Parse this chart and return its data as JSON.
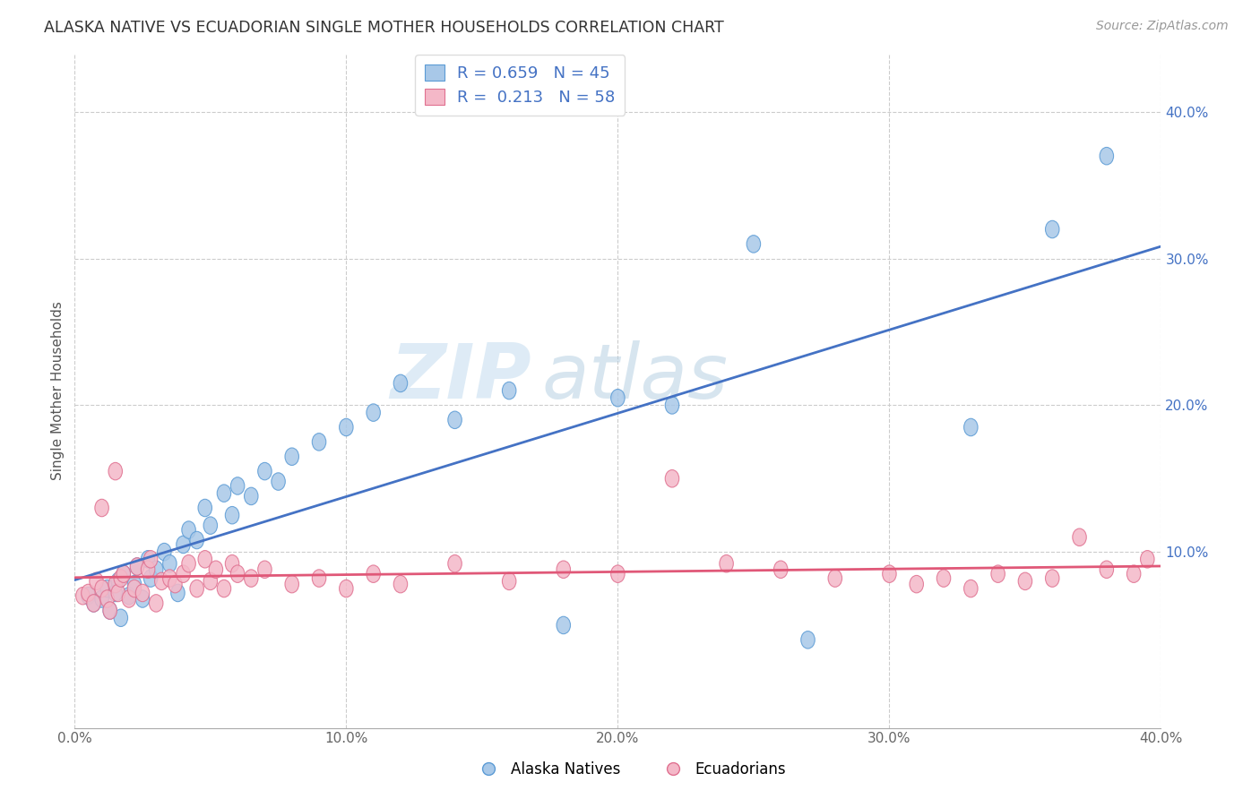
{
  "title": "ALASKA NATIVE VS ECUADORIAN SINGLE MOTHER HOUSEHOLDS CORRELATION CHART",
  "source": "Source: ZipAtlas.com",
  "ylabel": "Single Mother Households",
  "xlim": [
    0.0,
    0.4
  ],
  "ylim": [
    -0.02,
    0.44
  ],
  "xtick_labels": [
    "0.0%",
    "10.0%",
    "20.0%",
    "30.0%",
    "40.0%"
  ],
  "xtick_vals": [
    0.0,
    0.1,
    0.2,
    0.3,
    0.4
  ],
  "ytick_labels_right": [
    "10.0%",
    "20.0%",
    "30.0%",
    "40.0%"
  ],
  "ytick_vals_right": [
    0.1,
    0.2,
    0.3,
    0.4
  ],
  "blue_fill": "#a8c8e8",
  "blue_edge": "#5b9bd5",
  "pink_fill": "#f4b8c8",
  "pink_edge": "#e07090",
  "blue_line_color": "#4472c4",
  "pink_line_color": "#e05878",
  "blue_R": "0.659",
  "blue_N": "45",
  "pink_R": "0.213",
  "pink_N": "58",
  "legend_label_blue": "Alaska Natives",
  "legend_label_pink": "Ecuadorians",
  "watermark_zip": "ZIP",
  "watermark_atlas": "atlas",
  "alaska_x": [
    0.005,
    0.007,
    0.01,
    0.012,
    0.013,
    0.015,
    0.016,
    0.017,
    0.018,
    0.02,
    0.022,
    0.023,
    0.025,
    0.027,
    0.028,
    0.03,
    0.033,
    0.035,
    0.038,
    0.04,
    0.042,
    0.045,
    0.048,
    0.05,
    0.055,
    0.058,
    0.06,
    0.065,
    0.07,
    0.075,
    0.08,
    0.09,
    0.1,
    0.11,
    0.12,
    0.14,
    0.16,
    0.18,
    0.2,
    0.22,
    0.25,
    0.27,
    0.33,
    0.36,
    0.38
  ],
  "alaska_y": [
    0.07,
    0.065,
    0.068,
    0.075,
    0.06,
    0.072,
    0.08,
    0.055,
    0.085,
    0.07,
    0.078,
    0.09,
    0.068,
    0.095,
    0.082,
    0.088,
    0.1,
    0.092,
    0.072,
    0.105,
    0.115,
    0.108,
    0.13,
    0.118,
    0.14,
    0.125,
    0.145,
    0.138,
    0.155,
    0.148,
    0.165,
    0.175,
    0.185,
    0.195,
    0.215,
    0.19,
    0.21,
    0.05,
    0.205,
    0.2,
    0.31,
    0.04,
    0.185,
    0.32,
    0.37
  ],
  "ecuador_x": [
    0.003,
    0.005,
    0.007,
    0.008,
    0.01,
    0.012,
    0.013,
    0.015,
    0.016,
    0.017,
    0.018,
    0.02,
    0.022,
    0.023,
    0.025,
    0.027,
    0.028,
    0.03,
    0.032,
    0.035,
    0.037,
    0.04,
    0.042,
    0.045,
    0.048,
    0.05,
    0.052,
    0.055,
    0.058,
    0.06,
    0.065,
    0.07,
    0.08,
    0.09,
    0.1,
    0.11,
    0.12,
    0.14,
    0.16,
    0.18,
    0.2,
    0.22,
    0.24,
    0.26,
    0.28,
    0.3,
    0.31,
    0.32,
    0.33,
    0.34,
    0.35,
    0.36,
    0.37,
    0.38,
    0.39,
    0.395,
    0.01,
    0.015
  ],
  "ecuador_y": [
    0.07,
    0.072,
    0.065,
    0.08,
    0.075,
    0.068,
    0.06,
    0.078,
    0.072,
    0.082,
    0.085,
    0.068,
    0.075,
    0.09,
    0.072,
    0.088,
    0.095,
    0.065,
    0.08,
    0.082,
    0.078,
    0.085,
    0.092,
    0.075,
    0.095,
    0.08,
    0.088,
    0.075,
    0.092,
    0.085,
    0.082,
    0.088,
    0.078,
    0.082,
    0.075,
    0.085,
    0.078,
    0.092,
    0.08,
    0.088,
    0.085,
    0.15,
    0.092,
    0.088,
    0.082,
    0.085,
    0.078,
    0.082,
    0.075,
    0.085,
    0.08,
    0.082,
    0.11,
    0.088,
    0.085,
    0.095,
    0.13,
    0.155
  ]
}
